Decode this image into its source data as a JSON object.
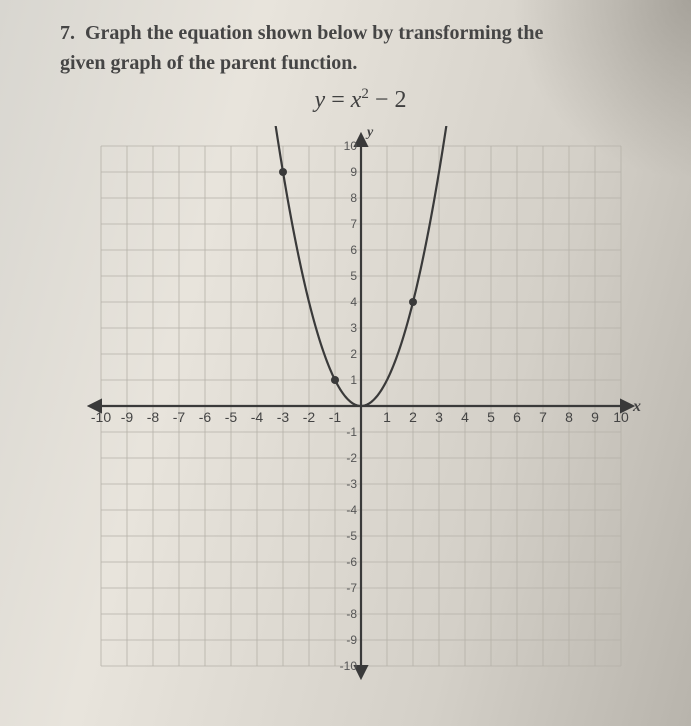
{
  "question": {
    "number": "7.",
    "line1": "Graph the equation shown below by transforming the",
    "line2": "given graph of the parent function.",
    "equation_lhs": "y",
    "equation_eq": "=",
    "equation_var": "x",
    "equation_exp": "2",
    "equation_tail": " − 2"
  },
  "chart": {
    "type": "line",
    "xlim": [
      -10,
      10
    ],
    "ylim": [
      -10,
      10
    ],
    "xtick_step": 1,
    "ytick_step": 1,
    "x_axis_label": "x",
    "y_axis_label": "y",
    "grid_color": "#b5b1a8",
    "axis_color": "#3a3a3a",
    "curve_color": "#3a3a3a",
    "point_color": "#3a3a3a",
    "background_color": "transparent",
    "x_tick_labels_neg": [
      "-10",
      "-9",
      "-8",
      "-7",
      "-6",
      "-5",
      "-4",
      "-3",
      "-2",
      "-1"
    ],
    "x_tick_labels_pos": [
      "1",
      "2",
      "3",
      "4",
      "5",
      "6",
      "7",
      "8",
      "9",
      "10"
    ],
    "y_tick_labels_pos": [
      "10",
      "9",
      "8",
      "7",
      "6",
      "5",
      "4",
      "3",
      "2",
      "1"
    ],
    "y_tick_labels_neg": [
      "-1",
      "-2",
      "-3",
      "-4",
      "-5",
      "-6",
      "-7",
      "-8",
      "-9",
      "-10"
    ],
    "parent_curve": {
      "description": "parent function y = x^2",
      "points": [
        {
          "x": -3,
          "y": 9
        },
        {
          "x": -2,
          "y": 4
        },
        {
          "x": -1,
          "y": 1
        },
        {
          "x": 0,
          "y": 0
        },
        {
          "x": 1,
          "y": 1
        },
        {
          "x": 2,
          "y": 4
        },
        {
          "x": 3,
          "y": 9
        }
      ],
      "marked_points": [
        {
          "x": -3,
          "y": 9
        },
        {
          "x": -1,
          "y": 1
        },
        {
          "x": 2,
          "y": 4
        }
      ],
      "line_width": 2.2,
      "marker_radius": 4
    }
  }
}
